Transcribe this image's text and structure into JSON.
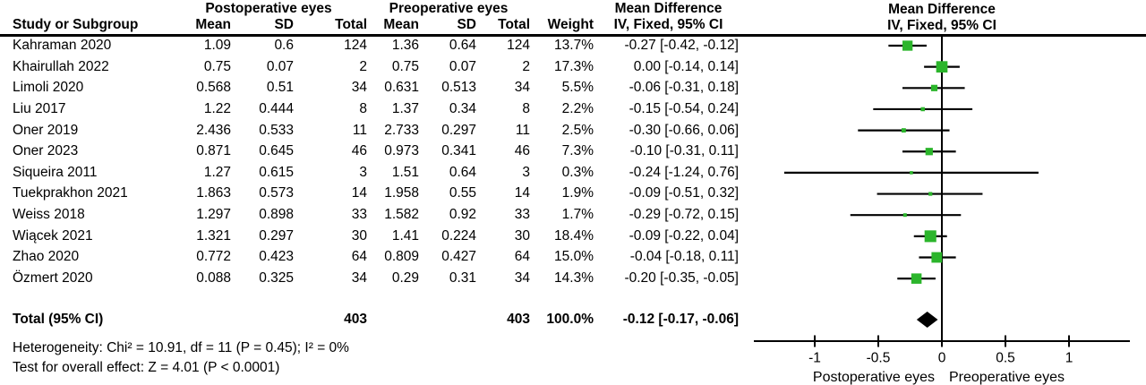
{
  "table": {
    "group_headers": {
      "postoperative": "Postoperative eyes",
      "preoperative": "Preoperative eyes",
      "mean_difference": "Mean Difference"
    },
    "col_headers": {
      "study": "Study or Subgroup",
      "mean_post": "Mean",
      "sd_post": "SD",
      "total_post": "Total",
      "mean_pre": "Mean",
      "sd_pre": "SD",
      "total_pre": "Total",
      "weight": "Weight",
      "ci": "IV, Fixed, 95% CI"
    }
  },
  "plot_header": {
    "title": "Mean Difference",
    "subtitle": "IV, Fixed, 95% CI"
  },
  "footer": {
    "heterogeneity": "Heterogeneity: Chi² = 10.91, df = 11 (P = 0.45); I² = 0%",
    "overall_effect": "Test for overall effect: Z = 4.01 (P < 0.0001)"
  },
  "colors": {
    "marker_green": "#2BB52B",
    "line_black": "#000000"
  },
  "chart_data": {
    "type": "forest",
    "effect_measure": "Mean Difference",
    "model": "IV, Fixed, 95% CI",
    "xlim": [
      -1.48,
      1.48
    ],
    "grid": false,
    "ticks": [
      {
        "value": -1,
        "label": "-1"
      },
      {
        "value": -0.5,
        "label": "-0.5"
      },
      {
        "value": 0,
        "label": "0"
      },
      {
        "value": 0.5,
        "label": "0.5"
      },
      {
        "value": 1,
        "label": "1"
      }
    ],
    "axis_label_left": "Postoperative eyes",
    "axis_label_right": "Preoperative eyes",
    "studies": [
      {
        "study": "Kahraman 2020",
        "post_mean": "1.09",
        "post_sd": "0.6",
        "post_total": "124",
        "pre_mean": "1.36",
        "pre_sd": "0.64",
        "pre_total": "124",
        "weight": "13.7%",
        "weight_value": 13.7,
        "md": -0.27,
        "ci_low": -0.42,
        "ci_high": -0.12,
        "ci_label": "-0.27 [-0.42, -0.12]"
      },
      {
        "study": "Khairullah 2022",
        "post_mean": "0.75",
        "post_sd": "0.07",
        "post_total": "2",
        "pre_mean": "0.75",
        "pre_sd": "0.07",
        "pre_total": "2",
        "weight": "17.3%",
        "weight_value": 17.3,
        "md": 0.0,
        "ci_low": -0.14,
        "ci_high": 0.14,
        "ci_label": "0.00 [-0.14, 0.14]"
      },
      {
        "study": "Limoli 2020",
        "post_mean": "0.568",
        "post_sd": "0.51",
        "post_total": "34",
        "pre_mean": "0.631",
        "pre_sd": "0.513",
        "pre_total": "34",
        "weight": "5.5%",
        "weight_value": 5.5,
        "md": -0.06,
        "ci_low": -0.31,
        "ci_high": 0.18,
        "ci_label": "-0.06 [-0.31, 0.18]"
      },
      {
        "study": "Liu 2017",
        "post_mean": "1.22",
        "post_sd": "0.444",
        "post_total": "8",
        "pre_mean": "1.37",
        "pre_sd": "0.34",
        "pre_total": "8",
        "weight": "2.2%",
        "weight_value": 2.2,
        "md": -0.15,
        "ci_low": -0.54,
        "ci_high": 0.24,
        "ci_label": "-0.15 [-0.54, 0.24]"
      },
      {
        "study": "Oner 2019",
        "post_mean": "2.436",
        "post_sd": "0.533",
        "post_total": "11",
        "pre_mean": "2.733",
        "pre_sd": "0.297",
        "pre_total": "11",
        "weight": "2.5%",
        "weight_value": 2.5,
        "md": -0.3,
        "ci_low": -0.66,
        "ci_high": 0.06,
        "ci_label": "-0.30 [-0.66, 0.06]"
      },
      {
        "study": "Oner 2023",
        "post_mean": "0.871",
        "post_sd": "0.645",
        "post_total": "46",
        "pre_mean": "0.973",
        "pre_sd": "0.341",
        "pre_total": "46",
        "weight": "7.3%",
        "weight_value": 7.3,
        "md": -0.1,
        "ci_low": -0.31,
        "ci_high": 0.11,
        "ci_label": "-0.10 [-0.31, 0.11]"
      },
      {
        "study": "Siqueira 2011",
        "post_mean": "1.27",
        "post_sd": "0.615",
        "post_total": "3",
        "pre_mean": "1.51",
        "pre_sd": "0.64",
        "pre_total": "3",
        "weight": "0.3%",
        "weight_value": 0.3,
        "md": -0.24,
        "ci_low": -1.24,
        "ci_high": 0.76,
        "ci_label": "-0.24 [-1.24, 0.76]"
      },
      {
        "study": "Tuekprakhon 2021",
        "post_mean": "1.863",
        "post_sd": "0.573",
        "post_total": "14",
        "pre_mean": "1.958",
        "pre_sd": "0.55",
        "pre_total": "14",
        "weight": "1.9%",
        "weight_value": 1.9,
        "md": -0.09,
        "ci_low": -0.51,
        "ci_high": 0.32,
        "ci_label": "-0.09 [-0.51, 0.32]"
      },
      {
        "study": "Weiss 2018",
        "post_mean": "1.297",
        "post_sd": "0.898",
        "post_total": "33",
        "pre_mean": "1.582",
        "pre_sd": "0.92",
        "pre_total": "33",
        "weight": "1.7%",
        "weight_value": 1.7,
        "md": -0.29,
        "ci_low": -0.72,
        "ci_high": 0.15,
        "ci_label": "-0.29 [-0.72, 0.15]"
      },
      {
        "study": "Wiącek 2021",
        "post_mean": "1.321",
        "post_sd": "0.297",
        "post_total": "30",
        "pre_mean": "1.41",
        "pre_sd": "0.224",
        "pre_total": "30",
        "weight": "18.4%",
        "weight_value": 18.4,
        "md": -0.09,
        "ci_low": -0.22,
        "ci_high": 0.04,
        "ci_label": "-0.09 [-0.22, 0.04]"
      },
      {
        "study": "Zhao 2020",
        "post_mean": "0.772",
        "post_sd": "0.423",
        "post_total": "64",
        "pre_mean": "0.809",
        "pre_sd": "0.427",
        "pre_total": "64",
        "weight": "15.0%",
        "weight_value": 15.0,
        "md": -0.04,
        "ci_low": -0.18,
        "ci_high": 0.11,
        "ci_label": "-0.04 [-0.18, 0.11]"
      },
      {
        "study": "Özmert 2020",
        "post_mean": "0.088",
        "post_sd": "0.325",
        "post_total": "34",
        "pre_mean": "0.29",
        "pre_sd": "0.31",
        "pre_total": "34",
        "weight": "14.3%",
        "weight_value": 14.3,
        "md": -0.2,
        "ci_low": -0.35,
        "ci_high": -0.05,
        "ci_label": "-0.20 [-0.35, -0.05]"
      }
    ],
    "total": {
      "label": "Total (95% CI)",
      "post_total": "403",
      "pre_total": "403",
      "weight": "100.0%",
      "weight_value": 100.0,
      "md": -0.12,
      "ci_low": -0.17,
      "ci_high": -0.06,
      "ci_label": "-0.12 [-0.17, -0.06]"
    }
  }
}
